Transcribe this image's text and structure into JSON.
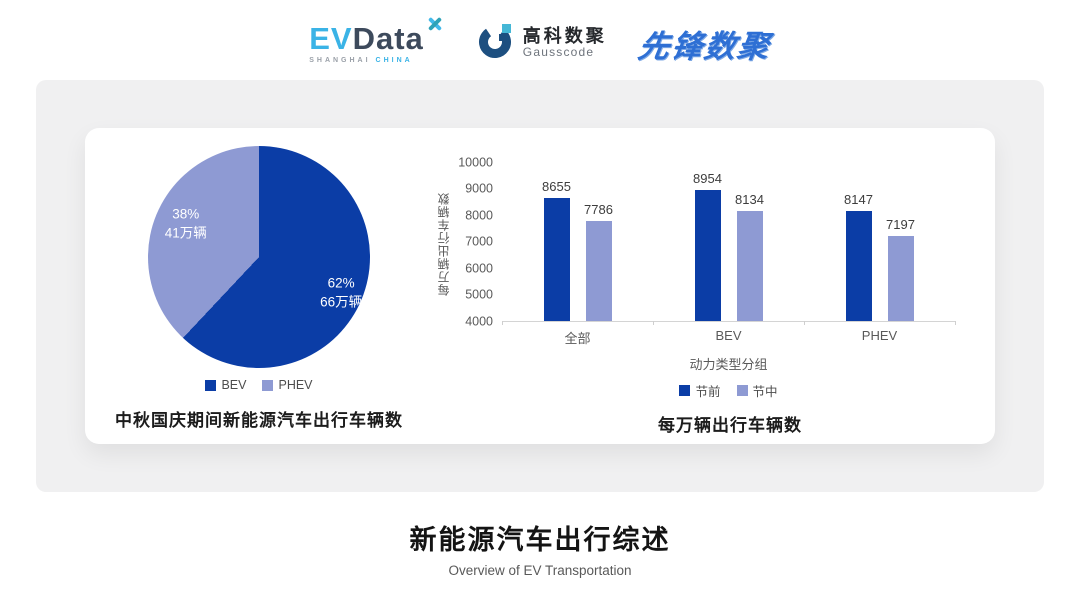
{
  "header": {
    "evdata": {
      "ev": "EV",
      "data": "Data",
      "sub1": "SHANGHAI",
      "sub2": "CHINA"
    },
    "gausscode": {
      "cn": "高科数聚",
      "en": "Gausscode"
    },
    "xianfeng": {
      "text": "先锋数聚"
    }
  },
  "colors": {
    "primary_blue": "#0b3da6",
    "secondary_periwinkle": "#8e9ad3",
    "panel_gray": "#f0f0f1",
    "evdata_lightblue": "#3ab3e6",
    "evdata_slate": "#3d4a5c",
    "gauss_navy": "#1d4f80",
    "gauss_teal": "#45b7d6",
    "xianfeng_blue": "#2e6fd4"
  },
  "icons": {
    "evdata_spark": "x-spark-icon",
    "gauss_mark": "g-ring-icon"
  },
  "chart_data": [
    {
      "type": "pie",
      "title": "中秋国庆期间新能源汽车出行车辆数",
      "legend_position": "bottom",
      "slices": [
        {
          "label": "BEV",
          "pct": 62,
          "pct_label": "62%",
          "value_label": "66万辆",
          "color": "#0b3da6"
        },
        {
          "label": "PHEV",
          "pct": 38,
          "pct_label": "38%",
          "value_label": "41万辆",
          "color": "#8e9ad3"
        }
      ]
    },
    {
      "type": "bar",
      "title": "每万辆出行车辆数",
      "categories": [
        "全部",
        "BEV",
        "PHEV"
      ],
      "series": [
        {
          "name": "节前",
          "values": [
            8655,
            8954,
            8147
          ],
          "color": "#0b3da6"
        },
        {
          "name": "节中",
          "values": [
            7786,
            8134,
            7197
          ],
          "color": "#8e9ad3"
        }
      ],
      "xlabel": "动力类型分组",
      "ylabel": "每万辆出行车辆数",
      "ylim": [
        4000,
        10000
      ],
      "yticks": [
        4000,
        5000,
        6000,
        7000,
        8000,
        9000,
        10000
      ],
      "grid": false,
      "legend_position": "bottom"
    }
  ],
  "footer": {
    "title": "新能源汽车出行综述",
    "subtitle": "Overview of EV Transportation"
  }
}
